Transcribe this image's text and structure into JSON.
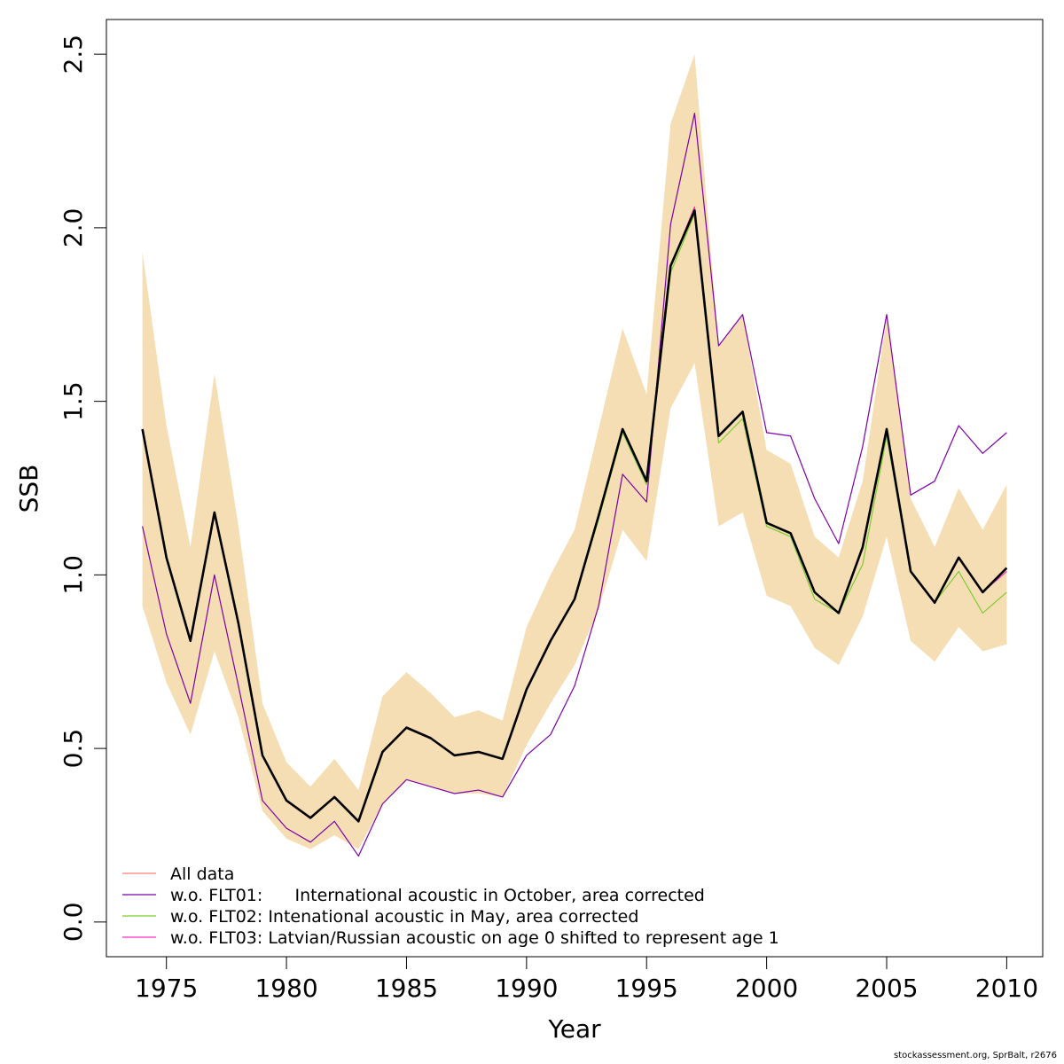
{
  "chart_data": {
    "type": "line",
    "title": "",
    "xlabel": "Year",
    "ylabel": "SSB",
    "xlim": [
      1972.5,
      2011.5
    ],
    "ylim": [
      -0.1,
      2.6
    ],
    "xticks": [
      1975,
      1980,
      1985,
      1990,
      1995,
      2000,
      2005,
      2010
    ],
    "yticks": [
      0.0,
      0.5,
      1.0,
      1.5,
      2.0,
      2.5
    ],
    "xtick_labels": [
      "1975",
      "1980",
      "1985",
      "1990",
      "1995",
      "2000",
      "2005",
      "2010"
    ],
    "ytick_labels": [
      "0.0",
      "0.5",
      "1.0",
      "1.5",
      "2.0",
      "2.5"
    ],
    "grid": false,
    "legend_position": "bottom-left",
    "x": [
      1974,
      1975,
      1976,
      1977,
      1978,
      1979,
      1980,
      1981,
      1982,
      1983,
      1984,
      1985,
      1986,
      1987,
      1988,
      1989,
      1990,
      1991,
      1992,
      1993,
      1994,
      1995,
      1996,
      1997,
      1998,
      1999,
      2000,
      2001,
      2002,
      2003,
      2004,
      2005,
      2006,
      2007,
      2008,
      2009,
      2010
    ],
    "confidence_band": {
      "color": "#f5deb3",
      "upper": [
        1.93,
        1.43,
        1.08,
        1.58,
        1.14,
        0.63,
        0.46,
        0.39,
        0.47,
        0.38,
        0.65,
        0.72,
        0.66,
        0.59,
        0.61,
        0.58,
        0.85,
        1.0,
        1.13,
        1.42,
        1.71,
        1.52,
        2.3,
        2.5,
        1.66,
        1.75,
        1.36,
        1.32,
        1.11,
        1.05,
        1.27,
        1.74,
        1.22,
        1.08,
        1.25,
        1.13,
        1.26
      ],
      "lower": [
        0.91,
        0.69,
        0.54,
        0.78,
        0.59,
        0.32,
        0.24,
        0.21,
        0.25,
        0.21,
        0.34,
        0.41,
        0.39,
        0.37,
        0.37,
        0.36,
        0.51,
        0.63,
        0.74,
        0.9,
        1.13,
        1.04,
        1.48,
        1.61,
        1.14,
        1.18,
        0.94,
        0.91,
        0.79,
        0.74,
        0.88,
        1.11,
        0.81,
        0.75,
        0.85,
        0.78,
        0.8
      ]
    },
    "series": [
      {
        "name": "All data",
        "color": "#fa8072",
        "width": 1.2,
        "values": [
          1.42,
          1.05,
          0.81,
          1.18,
          0.86,
          0.48,
          0.35,
          0.3,
          0.36,
          0.29,
          0.49,
          0.56,
          0.53,
          0.48,
          0.49,
          0.47,
          0.67,
          0.81,
          0.93,
          1.17,
          1.42,
          1.27,
          1.89,
          2.05,
          1.4,
          1.47,
          1.15,
          1.12,
          0.95,
          0.89,
          1.08,
          1.42,
          1.01,
          0.92,
          1.05,
          0.95,
          1.02
        ]
      },
      {
        "name": "w.o. FLT01:      International acoustic in October, area corrected",
        "color": "#7b00a8",
        "width": 1.2,
        "values": [
          1.14,
          0.83,
          0.63,
          1.0,
          0.68,
          0.35,
          0.27,
          0.23,
          0.29,
          0.19,
          0.34,
          0.41,
          0.39,
          0.37,
          0.38,
          0.36,
          0.48,
          0.54,
          0.68,
          0.91,
          1.29,
          1.21,
          2.01,
          2.33,
          1.66,
          1.75,
          1.41,
          1.4,
          1.22,
          1.09,
          1.37,
          1.75,
          1.23,
          1.27,
          1.43,
          1.35,
          1.41
        ]
      },
      {
        "name": "w.o. FLT02: Intenational acoustic in May, area corrected",
        "color": "#7ccd32",
        "width": 1.2,
        "values": [
          1.42,
          1.05,
          0.81,
          1.18,
          0.86,
          0.48,
          0.35,
          0.3,
          0.36,
          0.29,
          0.49,
          0.56,
          0.53,
          0.48,
          0.49,
          0.47,
          0.67,
          0.81,
          0.93,
          1.16,
          1.41,
          1.26,
          1.87,
          2.04,
          1.38,
          1.45,
          1.14,
          1.11,
          0.93,
          0.89,
          1.03,
          1.4,
          1.01,
          0.92,
          1.01,
          0.89,
          0.95
        ]
      },
      {
        "name": "w.o. FLT03: Latvian/Russian acoustic on age 0 shifted to represent age 1",
        "color": "#ff2cc8",
        "width": 1.2,
        "values": [
          1.42,
          1.05,
          0.81,
          1.18,
          0.86,
          0.48,
          0.35,
          0.3,
          0.36,
          0.29,
          0.49,
          0.56,
          0.53,
          0.48,
          0.49,
          0.47,
          0.67,
          0.81,
          0.93,
          1.17,
          1.42,
          1.27,
          1.89,
          2.06,
          1.4,
          1.47,
          1.15,
          1.12,
          0.95,
          0.89,
          1.08,
          1.42,
          1.01,
          0.92,
          1.05,
          0.95,
          1.01
        ]
      },
      {
        "name": "",
        "color": "#000000",
        "width": 2.6,
        "values": [
          1.42,
          1.05,
          0.81,
          1.18,
          0.86,
          0.48,
          0.35,
          0.3,
          0.36,
          0.29,
          0.49,
          0.56,
          0.53,
          0.48,
          0.49,
          0.47,
          0.67,
          0.81,
          0.93,
          1.17,
          1.42,
          1.27,
          1.89,
          2.05,
          1.4,
          1.47,
          1.15,
          1.12,
          0.95,
          0.89,
          1.08,
          1.42,
          1.01,
          0.92,
          1.05,
          0.95,
          1.02
        ]
      }
    ]
  },
  "footer": "stockassessment.org, SprBalt, r2676"
}
